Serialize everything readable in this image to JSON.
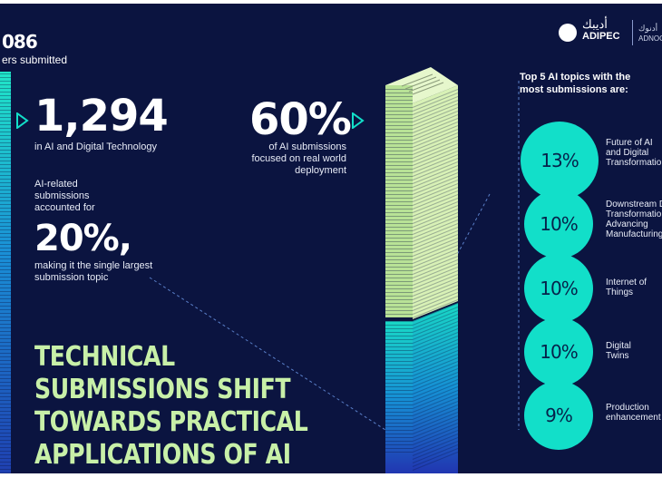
{
  "header": {
    "total_number": "086",
    "total_label": "ers submitted",
    "logo_arabic": "أديبك",
    "logo_text": "ADIPEC",
    "partner_arabic": "أدنوك",
    "partner_text": "ADNOC"
  },
  "stats": {
    "ai_count": "1,294",
    "ai_count_label": "in AI and Digital Technology",
    "share_intro": "AI-related submissions accounted for",
    "share_value": "20%,",
    "share_outro": "making it the single largest submission topic",
    "deployment_value": "60%",
    "deployment_label": "of AI submissions focused on real world deployment"
  },
  "headline": [
    "TECHNICAL",
    "SUBMISSIONS SHIFT",
    "TOWARDS PRACTICAL",
    "APPLICATIONS OF AI"
  ],
  "topics_title": "Top 5 AI topics with the most submissions are:",
  "topics": [
    {
      "value": "13%",
      "label": [
        "Future of AI",
        "and Digital",
        "Transformation"
      ]
    },
    {
      "value": "10%",
      "label": [
        "Downstream D",
        "Transformation",
        "Advancing",
        "Manufacturing"
      ]
    },
    {
      "value": "10%",
      "label": [
        "Internet of",
        "Things"
      ]
    },
    {
      "value": "10%",
      "label": [
        "Digital",
        "Twins"
      ]
    },
    {
      "value": "9%",
      "label": [
        "Production",
        "enhancement"
      ]
    }
  ],
  "colors": {
    "background": "#0b1440",
    "accent": "#12dfc9",
    "lime": "#c8f0a8"
  }
}
